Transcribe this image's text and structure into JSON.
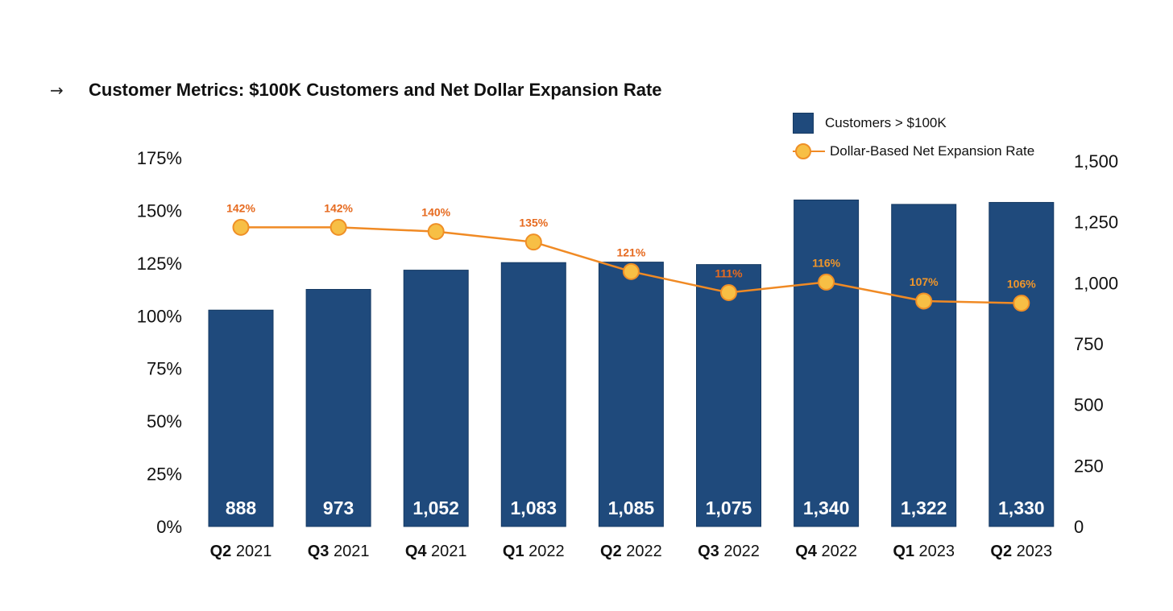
{
  "header": {
    "arrow_icon": "→",
    "title": "Customer Metrics: $100K Customers and Net Dollar Expansion Rate"
  },
  "legend": {
    "bar_label": "Customers > $100K",
    "line_label": "Dollar-Based Net Expansion Rate"
  },
  "colors": {
    "bar": "#1f4a7c",
    "bar_stroke": "#163a63",
    "line": "#f08a24",
    "marker_fill": "#f7bf45",
    "marker_stroke": "#ef8f26",
    "label_dark_orange": "#e66a1f",
    "label_light_orange": "#f0962a"
  },
  "chart_data": {
    "type": "bar",
    "title": "Customer Metrics: $100K Customers and Net Dollar Expansion Rate",
    "categories": [
      {
        "quarter": "Q2",
        "year": "2021"
      },
      {
        "quarter": "Q3",
        "year": "2021"
      },
      {
        "quarter": "Q4",
        "year": "2021"
      },
      {
        "quarter": "Q1",
        "year": "2022"
      },
      {
        "quarter": "Q2",
        "year": "2022"
      },
      {
        "quarter": "Q3",
        "year": "2022"
      },
      {
        "quarter": "Q4",
        "year": "2022"
      },
      {
        "quarter": "Q1",
        "year": "2023"
      },
      {
        "quarter": "Q2",
        "year": "2023"
      }
    ],
    "series": [
      {
        "name": "Customers > $100K",
        "type": "bar",
        "axis": "right",
        "values": [
          888,
          973,
          1052,
          1083,
          1085,
          1075,
          1340,
          1322,
          1330
        ],
        "labels": [
          "888",
          "973",
          "1,052",
          "1,083",
          "1,085",
          "1,075",
          "1,340",
          "1,322",
          "1,330"
        ]
      },
      {
        "name": "Dollar-Based Net Expansion Rate",
        "type": "line",
        "axis": "left",
        "values": [
          142,
          142,
          140,
          135,
          121,
          111,
          116,
          107,
          106
        ],
        "labels": [
          "142%",
          "142%",
          "140%",
          "135%",
          "121%",
          "111%",
          "116%",
          "107%",
          "106%"
        ],
        "label_tone": [
          "dark",
          "dark",
          "dark",
          "dark",
          "dark",
          "dark",
          "light",
          "light",
          "light"
        ]
      }
    ],
    "left_axis": {
      "ylim": [
        0,
        175
      ],
      "ticks": [
        0,
        25,
        50,
        75,
        100,
        125,
        150,
        175
      ],
      "tick_labels": [
        "0%",
        "25%",
        "50%",
        "75%",
        "100%",
        "125%",
        "150%",
        "175%"
      ]
    },
    "right_axis": {
      "ylim": [
        0,
        1500
      ],
      "ticks": [
        0,
        250,
        500,
        750,
        1000,
        1250,
        1500
      ],
      "tick_labels": [
        "0",
        "250",
        "500",
        "750",
        "1,000",
        "1,250",
        "1,500"
      ]
    },
    "grid": false,
    "legend_position": "top-right"
  }
}
